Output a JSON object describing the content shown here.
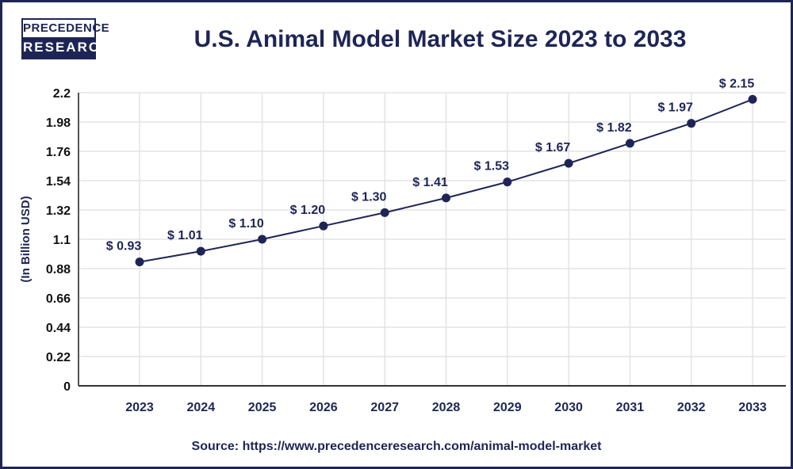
{
  "logo": {
    "line1": "PRECEDENCE",
    "line2": "RESEARCH"
  },
  "source": "Source: https://www.precedenceresearch.com/animal-model-market",
  "chart_data": {
    "type": "line",
    "title": "U.S. Animal Model Market Size 2023 to 2033",
    "ylabel": "(In Billion USD)",
    "xlabel": "",
    "categories": [
      "2023",
      "2024",
      "2025",
      "2026",
      "2027",
      "2028",
      "2029",
      "2030",
      "2031",
      "2032",
      "2033"
    ],
    "values": [
      0.93,
      1.01,
      1.1,
      1.2,
      1.3,
      1.41,
      1.53,
      1.67,
      1.82,
      1.97,
      2.15
    ],
    "data_labels": [
      "$ 0.93",
      "$ 1.01",
      "$ 1.10",
      "$ 1.20",
      "$ 1.30",
      "$ 1.41",
      "$ 1.53",
      "$ 1.67",
      "$ 1.82",
      "$ 1.97",
      "$ 2.15"
    ],
    "yticks": [
      "0",
      "0.22",
      "0.44",
      "0.66",
      "0.88",
      "1.1",
      "1.32",
      "1.54",
      "1.76",
      "1.98",
      "2.2"
    ],
    "ylim": [
      0,
      2.2
    ],
    "grid": true,
    "colors": {
      "line": "#1e2556",
      "marker": "#1e2556",
      "text": "#1e2556"
    }
  }
}
